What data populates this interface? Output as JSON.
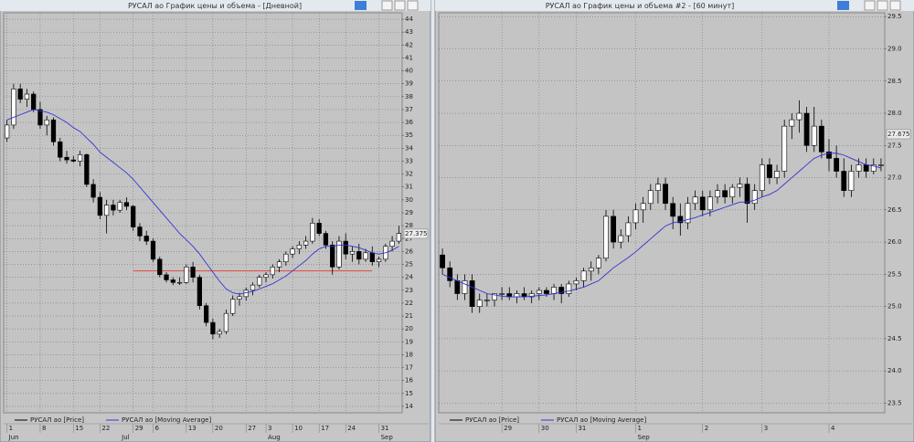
{
  "chart_data": [
    {
      "type": "candlestick",
      "title": "РУСАЛ ао График цены и объема - [Дневной]",
      "series": [
        {
          "name": "РУСАЛ ао [Price]",
          "color": "#000000",
          "open": [
            34.8,
            35.8,
            38.6,
            37.8,
            38.2,
            37,
            35.8,
            36.2,
            34.5,
            33.3,
            33.1,
            33,
            33.5,
            31.2,
            30.2,
            28.8,
            29.6,
            29.2,
            29.8,
            29.5,
            27.9,
            27.2,
            26.8,
            25.4,
            24.2,
            23.8,
            23.6,
            23.6,
            24.8,
            24,
            21.8,
            20.5,
            19.6,
            19.8,
            21.2,
            22.3,
            22.5,
            23,
            23.4,
            24,
            24.2,
            24.8,
            25.2,
            25.8,
            26.2,
            26.5,
            26.8,
            28.2,
            27.4,
            26.5,
            24.8,
            26.8,
            25.8,
            26,
            25.4,
            25.9,
            25.2,
            25.4,
            26.4,
            26.8
          ],
          "high": [
            36.2,
            39,
            39,
            38.6,
            38.4,
            37.6,
            36.5,
            36.4,
            34.8,
            33.8,
            33.4,
            33.8,
            33.6,
            31.6,
            30.6,
            30,
            30,
            30,
            30.2,
            29.6,
            28.2,
            27.6,
            27,
            25.6,
            24.4,
            24,
            24,
            25,
            25.2,
            24.2,
            22,
            20.8,
            20,
            21.5,
            22.6,
            22.8,
            23.2,
            23.6,
            24.2,
            24.4,
            25,
            25.4,
            26,
            26.4,
            26.8,
            27.2,
            28.6,
            28.5,
            27.6,
            26.8,
            27.2,
            27.4,
            26.4,
            26.6,
            26.2,
            26.4,
            25.6,
            26.6,
            27.2,
            28
          ],
          "low": [
            34.5,
            35.5,
            37.5,
            37.2,
            36.8,
            35.5,
            35,
            34.2,
            33,
            32.8,
            32.9,
            32.6,
            31,
            29.8,
            28.5,
            27.4,
            28.8,
            29,
            29.2,
            27.6,
            26.8,
            26.5,
            25.2,
            24,
            23.6,
            23.4,
            23.4,
            23.5,
            23.6,
            21.5,
            20.2,
            19.2,
            19.3,
            19.6,
            21,
            21.8,
            22.2,
            22.6,
            23.2,
            23.6,
            23.9,
            24.4,
            24.9,
            25.5,
            25.8,
            26.2,
            26.6,
            27.2,
            26.2,
            24.2,
            24.6,
            25.4,
            25.2,
            25,
            25.2,
            24.9,
            24.8,
            25.2,
            26,
            26.6
          ],
          "close": [
            35.8,
            38.6,
            37.8,
            38.2,
            37,
            35.8,
            36.2,
            34.5,
            33.3,
            33.1,
            33,
            33.5,
            31.2,
            30.2,
            28.8,
            29.6,
            29.2,
            29.8,
            29.5,
            27.9,
            27.2,
            26.8,
            25.4,
            24.2,
            23.8,
            23.6,
            23.6,
            24.8,
            24,
            21.8,
            20.5,
            19.6,
            19.8,
            21.2,
            22.3,
            22.5,
            23,
            23.4,
            24,
            24.2,
            24.8,
            25.2,
            25.8,
            26.2,
            26.5,
            26.8,
            28.2,
            27.4,
            26.5,
            24.8,
            26.8,
            25.8,
            26,
            25.4,
            25.9,
            25.2,
            25.4,
            26.4,
            26.8,
            27.4
          ]
        },
        {
          "name": "РУСАЛ ао [Moving Average]",
          "color": "#3434d6",
          "values": [
            36.2,
            36.4,
            36.6,
            36.8,
            37,
            36.9,
            36.8,
            36.6,
            36.3,
            36,
            35.6,
            35.3,
            34.8,
            34.3,
            33.7,
            33.3,
            32.9,
            32.5,
            32.1,
            31.6,
            31,
            30.4,
            29.8,
            29.2,
            28.6,
            28,
            27.4,
            26.9,
            26.4,
            25.8,
            25.1,
            24.4,
            23.7,
            23.1,
            22.8,
            22.7,
            22.8,
            22.9,
            23.1,
            23.3,
            23.5,
            23.8,
            24.1,
            24.5,
            24.9,
            25.3,
            25.8,
            26.2,
            26.4,
            26.4,
            26.5,
            26.5,
            26.4,
            26.3,
            26.1,
            25.9,
            25.8,
            25.9,
            26.1,
            26.4
          ]
        }
      ],
      "xlim": [
        -0.5,
        59.5
      ],
      "xticks": [
        {
          "value": 0,
          "label": "1"
        },
        {
          "value": 5,
          "label": "8"
        },
        {
          "value": 10,
          "label": "15"
        },
        {
          "value": 14,
          "label": "22"
        },
        {
          "value": 19,
          "label": "29"
        },
        {
          "value": 22,
          "label": "6"
        },
        {
          "value": 27,
          "label": "13"
        },
        {
          "value": 31,
          "label": "20"
        },
        {
          "value": 36,
          "label": "27"
        },
        {
          "value": 39,
          "label": "3"
        },
        {
          "value": 43,
          "label": "10"
        },
        {
          "value": 47,
          "label": "17"
        },
        {
          "value": 51,
          "label": "24"
        },
        {
          "value": 56,
          "label": "31"
        }
      ],
      "months": [
        {
          "value": 0,
          "label": "Jun"
        },
        {
          "value": 17,
          "label": "Jul"
        },
        {
          "value": 39,
          "label": "Aug"
        },
        {
          "value": 56,
          "label": "Sep"
        }
      ],
      "ylim": [
        13.5,
        44.5
      ],
      "yticks": [
        14,
        15,
        16,
        17,
        18,
        19,
        20,
        21,
        22,
        23,
        24,
        25,
        26,
        27,
        28,
        29,
        30,
        31,
        32,
        33,
        34,
        35,
        36,
        37,
        38,
        39,
        40,
        41,
        42,
        43,
        44
      ],
      "last_price": 27.375,
      "hline": {
        "value": 24.5,
        "color": "#e04a3c",
        "xrange": [
          19,
          55
        ]
      },
      "grid": true
    },
    {
      "type": "candlestick",
      "title": "РУСАЛ ао График цены и объема #2 - [60 минут]",
      "series": [
        {
          "name": "РУСАЛ ао [Price]",
          "color": "#000000",
          "open": [
            25.8,
            25.6,
            25.4,
            25.2,
            25.4,
            25.0,
            25.1,
            25.1,
            25.2,
            25.2,
            25.15,
            25.2,
            25.15,
            25.2,
            25.25,
            25.2,
            25.3,
            25.2,
            25.35,
            25.4,
            25.55,
            25.6,
            25.75,
            26.4,
            26.0,
            26.1,
            26.3,
            26.5,
            26.6,
            26.8,
            26.9,
            26.6,
            26.4,
            26.3,
            26.6,
            26.7,
            26.5,
            26.7,
            26.8,
            26.7,
            26.85,
            26.9,
            26.6,
            26.8,
            27.2,
            27.0,
            27.1,
            27.8,
            27.9,
            28.0,
            27.5,
            27.8,
            27.4,
            27.3,
            27.1,
            26.8,
            27.1,
            27.2,
            27.1,
            27.2
          ],
          "high": [
            25.9,
            25.7,
            25.5,
            25.5,
            25.5,
            25.2,
            25.2,
            25.2,
            25.3,
            25.3,
            25.25,
            25.3,
            25.25,
            25.3,
            25.3,
            25.35,
            25.35,
            25.4,
            25.45,
            25.6,
            25.7,
            25.8,
            26.5,
            26.5,
            26.2,
            26.4,
            26.6,
            26.7,
            26.9,
            27.0,
            27.0,
            26.7,
            26.6,
            26.7,
            26.8,
            26.8,
            26.8,
            26.9,
            26.9,
            26.9,
            27.0,
            27.0,
            26.9,
            27.3,
            27.3,
            27.2,
            27.9,
            28.0,
            28.2,
            28.1,
            28.1,
            27.9,
            27.6,
            27.5,
            27.3,
            27.2,
            27.3,
            27.3,
            27.3,
            27.3
          ],
          "low": [
            25.5,
            25.3,
            25.1,
            25.1,
            24.9,
            24.9,
            25.0,
            25.0,
            25.1,
            25.1,
            25.05,
            25.1,
            25.05,
            25.1,
            25.15,
            25.1,
            25.05,
            25.15,
            25.25,
            25.3,
            25.4,
            25.5,
            25.7,
            25.9,
            25.9,
            26.0,
            26.2,
            26.3,
            26.5,
            26.6,
            26.5,
            26.2,
            26.1,
            26.2,
            26.5,
            26.4,
            26.4,
            26.6,
            26.6,
            26.6,
            26.7,
            26.3,
            26.5,
            26.7,
            26.9,
            26.9,
            27.0,
            27.6,
            27.7,
            27.4,
            27.4,
            27.3,
            27.1,
            27.0,
            26.7,
            26.7,
            27.0,
            27.0,
            27.05,
            27.1
          ],
          "close": [
            25.6,
            25.4,
            25.2,
            25.4,
            25.0,
            25.1,
            25.1,
            25.2,
            25.2,
            25.15,
            25.2,
            25.15,
            25.2,
            25.25,
            25.2,
            25.3,
            25.2,
            25.35,
            25.4,
            25.55,
            25.6,
            25.75,
            26.4,
            26.0,
            26.1,
            26.3,
            26.5,
            26.6,
            26.8,
            26.9,
            26.6,
            26.4,
            26.3,
            26.6,
            26.7,
            26.5,
            26.7,
            26.8,
            26.7,
            26.85,
            26.9,
            26.6,
            26.8,
            27.2,
            27.0,
            27.1,
            27.8,
            27.9,
            28.0,
            27.5,
            27.8,
            27.4,
            27.3,
            27.1,
            26.8,
            27.1,
            27.2,
            27.1,
            27.2,
            27.2
          ]
        },
        {
          "name": "РУСАЛ ао [Moving Average]",
          "color": "#3434d6",
          "values": [
            25.5,
            25.45,
            25.4,
            25.35,
            25.3,
            25.25,
            25.2,
            25.18,
            25.16,
            25.15,
            25.15,
            25.15,
            25.16,
            25.17,
            25.18,
            25.2,
            25.22,
            25.24,
            25.27,
            25.3,
            25.35,
            25.4,
            25.5,
            25.6,
            25.68,
            25.76,
            25.85,
            25.95,
            26.05,
            26.15,
            26.25,
            26.3,
            26.32,
            26.35,
            26.38,
            26.42,
            26.46,
            26.5,
            26.54,
            26.58,
            26.62,
            26.62,
            26.65,
            26.7,
            26.74,
            26.8,
            26.9,
            27.0,
            27.1,
            27.2,
            27.3,
            27.35,
            27.38,
            27.38,
            27.35,
            27.3,
            27.25,
            27.2,
            27.18,
            27.15
          ]
        }
      ],
      "xlim": [
        -0.5,
        59.5
      ],
      "xticks": [
        {
          "value": 8,
          "label": "29"
        },
        {
          "value": 13,
          "label": "30"
        },
        {
          "value": 18,
          "label": "31"
        },
        {
          "value": 26,
          "label": "1"
        },
        {
          "value": 35,
          "label": "2"
        },
        {
          "value": 43,
          "label": "3"
        },
        {
          "value": 52,
          "label": "4"
        }
      ],
      "months": [
        {
          "value": 26,
          "label": "Sep"
        }
      ],
      "ylim": [
        23.35,
        29.56
      ],
      "yticks": [
        {
          "value": 23.5,
          "label": "23.5"
        },
        {
          "value": 24,
          "label": "24.0"
        },
        {
          "value": 24.5,
          "label": "24.5"
        },
        {
          "value": 25,
          "label": "25.0"
        },
        {
          "value": 25.5,
          "label": "25.5"
        },
        {
          "value": 26,
          "label": "26.0"
        },
        {
          "value": 26.5,
          "label": "26.5"
        },
        {
          "value": 27,
          "label": "27.0"
        },
        {
          "value": 27.5,
          "label": "27.5"
        },
        {
          "value": 28,
          "label": "28.0"
        },
        {
          "value": 28.5,
          "label": "28.5"
        },
        {
          "value": 29,
          "label": "29.0"
        },
        {
          "value": 29.5,
          "label": "29.5"
        }
      ],
      "last_price": 27.675,
      "grid": true
    }
  ]
}
